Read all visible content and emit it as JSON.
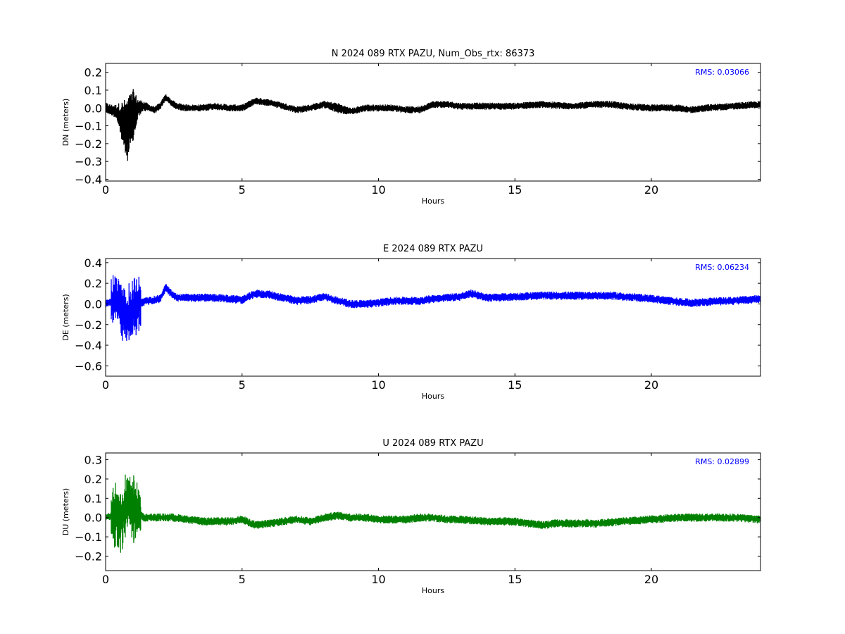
{
  "chart_data": [
    {
      "type": "line",
      "title": "N 2024 089 RTX  PAZU, Num_Obs_rtx: 86373",
      "xlabel": "Hours",
      "ylabel": "DN (meters)",
      "xlim": [
        0,
        24
      ],
      "ylim": [
        -0.41,
        0.25
      ],
      "xticks": [
        0,
        5,
        10,
        15,
        20
      ],
      "yticks": [
        -0.4,
        -0.3,
        -0.2,
        -0.1,
        0.0,
        0.1,
        0.2
      ],
      "tick_labels_x": [
        "0",
        "5",
        "10",
        "15",
        "20"
      ],
      "tick_labels_y": [
        "−0.4",
        "−0.3",
        "−0.2",
        "−0.1",
        "0.0",
        "0.1",
        "0.2"
      ],
      "grid": false,
      "color": "#000000",
      "annotation": "RMS:  0.03066",
      "annotation_color": "#0000ff",
      "series": [
        {
          "x": [
            0,
            0.2,
            0.4,
            0.6,
            0.8,
            1.0,
            1.2,
            1.4,
            1.6,
            1.8,
            2.0,
            2.2,
            2.4,
            2.6,
            3.0,
            3.5,
            4.0,
            4.5,
            5.0,
            5.5,
            6.0,
            6.5,
            7.0,
            7.5,
            8.0,
            8.5,
            9.0,
            9.5,
            10.0,
            10.5,
            11.0,
            11.5,
            12.0,
            12.5,
            13.0,
            14.0,
            15.0,
            16.0,
            17.0,
            18.0,
            18.5,
            19.0,
            20.0,
            21.0,
            21.5,
            22.0,
            23.0,
            24.0
          ],
          "y": [
            0.0,
            -0.01,
            -0.02,
            -0.08,
            -0.12,
            -0.05,
            0.0,
            0.01,
            0.0,
            -0.01,
            0.01,
            0.06,
            0.03,
            0.01,
            0.0,
            0.0,
            0.01,
            0.0,
            0.0,
            0.04,
            0.03,
            0.01,
            -0.01,
            0.0,
            0.02,
            0.0,
            -0.02,
            0.0,
            0.0,
            0.0,
            -0.01,
            -0.01,
            0.02,
            0.02,
            0.01,
            0.01,
            0.01,
            0.02,
            0.01,
            0.02,
            0.02,
            0.01,
            0.0,
            0.0,
            -0.01,
            0.0,
            0.01,
            0.02
          ],
          "noise": [
            0.03,
            0.03,
            0.04,
            0.12,
            0.18,
            0.16,
            0.05,
            0.03,
            0.02,
            0.02,
            0.02,
            0.02,
            0.02,
            0.02,
            0.02,
            0.02,
            0.02,
            0.02,
            0.02,
            0.02,
            0.02,
            0.02,
            0.02,
            0.02,
            0.02,
            0.03,
            0.02,
            0.02,
            0.02,
            0.02,
            0.02,
            0.02,
            0.02,
            0.02,
            0.02,
            0.02,
            0.02,
            0.02,
            0.02,
            0.02,
            0.02,
            0.02,
            0.02,
            0.02,
            0.02,
            0.02,
            0.02,
            0.02
          ]
        }
      ]
    },
    {
      "type": "line",
      "title": "E 2024 089 RTX  PAZU",
      "xlabel": "Hours",
      "ylabel": "DE (meters)",
      "xlim": [
        0,
        24
      ],
      "ylim": [
        -0.7,
        0.44
      ],
      "xticks": [
        0,
        5,
        10,
        15,
        20
      ],
      "yticks": [
        -0.6,
        -0.4,
        -0.2,
        0.0,
        0.2,
        0.4
      ],
      "tick_labels_x": [
        "0",
        "5",
        "10",
        "15",
        "20"
      ],
      "tick_labels_y": [
        "−0.6",
        "−0.4",
        "−0.2",
        "0.0",
        "0.2",
        "0.4"
      ],
      "grid": false,
      "color": "#0000ff",
      "annotation": "RMS:  0.06234",
      "annotation_color": "#0000ff",
      "series": [
        {
          "x": [
            0,
            0.2,
            0.4,
            0.6,
            0.8,
            1.0,
            1.2,
            1.4,
            1.6,
            1.8,
            2.0,
            2.2,
            2.4,
            2.6,
            3.0,
            3.5,
            4.0,
            4.5,
            5.0,
            5.5,
            6.0,
            6.5,
            7.0,
            7.5,
            8.0,
            8.5,
            9.0,
            9.5,
            10.0,
            10.5,
            11.0,
            11.5,
            12.0,
            12.5,
            13.0,
            13.4,
            14.0,
            15.0,
            16.0,
            17.0,
            18.0,
            18.5,
            19.0,
            20.0,
            21.0,
            21.5,
            22.0,
            23.0,
            24.0
          ],
          "y": [
            0.0,
            0.02,
            0.05,
            -0.05,
            -0.15,
            -0.05,
            0.0,
            0.02,
            0.03,
            0.04,
            0.05,
            0.16,
            0.1,
            0.06,
            0.06,
            0.06,
            0.06,
            0.05,
            0.04,
            0.1,
            0.09,
            0.06,
            0.03,
            0.04,
            0.07,
            0.03,
            0.0,
            0.0,
            0.01,
            0.03,
            0.03,
            0.03,
            0.05,
            0.06,
            0.07,
            0.1,
            0.06,
            0.07,
            0.08,
            0.08,
            0.08,
            0.08,
            0.07,
            0.05,
            0.02,
            0.01,
            0.02,
            0.03,
            0.05
          ]
        }
      ]
    },
    {
      "type": "line",
      "title": "U 2024 089 RTX  PAZU",
      "xlabel": "Hours",
      "ylabel": "DU (meters)",
      "xlim": [
        0,
        24
      ],
      "ylim": [
        -0.275,
        0.335
      ],
      "xticks": [
        0,
        5,
        10,
        15,
        20
      ],
      "yticks": [
        -0.2,
        -0.1,
        0.0,
        0.1,
        0.2,
        0.3
      ],
      "tick_labels_x": [
        "0",
        "5",
        "10",
        "15",
        "20"
      ],
      "tick_labels_y": [
        "−0.2",
        "−0.1",
        "0.0",
        "0.1",
        "0.2",
        "0.3"
      ],
      "grid": false,
      "color": "#008000",
      "annotation": "RMS:  0.02899",
      "annotation_color": "#0000ff",
      "series": [
        {
          "x": [
            0,
            0.2,
            0.4,
            0.6,
            0.8,
            1.0,
            1.2,
            1.4,
            1.6,
            1.8,
            2.0,
            2.5,
            3.0,
            3.5,
            4.0,
            4.5,
            5.0,
            5.5,
            6.0,
            6.5,
            7.0,
            7.5,
            8.0,
            8.5,
            9.0,
            9.5,
            10.0,
            10.5,
            11.0,
            11.5,
            12.0,
            12.5,
            13.0,
            14.0,
            15.0,
            15.5,
            16.0,
            16.5,
            17.0,
            18.0,
            19.0,
            20.0,
            21.0,
            21.5,
            22.0,
            23.0,
            24.0
          ],
          "y": [
            0.0,
            0.01,
            0.02,
            -0.02,
            0.1,
            0.05,
            0.03,
            0.0,
            0.0,
            0.0,
            0.0,
            0.0,
            -0.01,
            -0.02,
            -0.02,
            -0.02,
            -0.01,
            -0.04,
            -0.03,
            -0.02,
            -0.01,
            -0.02,
            0.0,
            0.01,
            0.0,
            0.0,
            -0.01,
            -0.01,
            -0.01,
            0.0,
            0.0,
            -0.01,
            -0.01,
            -0.02,
            -0.02,
            -0.03,
            -0.04,
            -0.03,
            -0.03,
            -0.03,
            -0.02,
            -0.01,
            0.0,
            0.0,
            0.0,
            0.0,
            -0.01
          ]
        }
      ]
    }
  ]
}
